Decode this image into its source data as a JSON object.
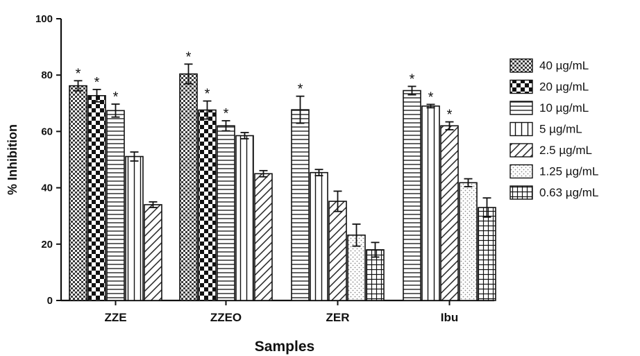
{
  "chart_data": {
    "type": "bar",
    "title": "",
    "xlabel": "Samples",
    "ylabel": "% Inhibition",
    "ylim": [
      0,
      100
    ],
    "yticks": [
      0,
      20,
      40,
      60,
      80,
      100
    ],
    "grid": false,
    "legend_position": "right",
    "categories": [
      "ZZE",
      "ZZEO",
      "ZER",
      "Ibu"
    ],
    "series": [
      {
        "name": "40 µg/mL",
        "pattern": "fine-checker",
        "values": [
          76.2,
          80.4,
          null,
          null
        ],
        "errors": [
          1.8,
          3.5,
          null,
          null
        ],
        "significant": [
          true,
          true,
          null,
          null
        ]
      },
      {
        "name": "20 µg/mL",
        "pattern": "coarse-checker",
        "values": [
          72.7,
          67.6,
          null,
          null
        ],
        "errors": [
          2.2,
          3.2,
          null,
          null
        ],
        "significant": [
          true,
          true,
          null,
          null
        ]
      },
      {
        "name": "10 µg/mL",
        "pattern": "horizontal-lines",
        "values": [
          67.4,
          62.0,
          67.7,
          74.5
        ],
        "errors": [
          2.3,
          1.8,
          4.8,
          1.5
        ],
        "significant": [
          true,
          true,
          true,
          true
        ]
      },
      {
        "name": "5 µg/mL",
        "pattern": "vertical-lines",
        "values": [
          51.1,
          58.5,
          45.4,
          69.0
        ],
        "errors": [
          1.6,
          1.1,
          1.1,
          0.6
        ],
        "significant": [
          false,
          false,
          false,
          true
        ]
      },
      {
        "name": "2.5 µg/mL",
        "pattern": "diagonal-lines",
        "values": [
          34.0,
          45.0,
          35.2,
          62.0
        ],
        "errors": [
          1.0,
          1.1,
          3.6,
          1.4
        ],
        "significant": [
          false,
          false,
          false,
          true
        ]
      },
      {
        "name": "1.25 µg/mL",
        "pattern": "dots",
        "values": [
          null,
          null,
          23.2,
          41.8
        ],
        "errors": [
          null,
          null,
          3.9,
          1.4
        ],
        "significant": [
          false,
          false,
          false,
          false
        ]
      },
      {
        "name": "0.63 µg/mL",
        "pattern": "grid",
        "values": [
          null,
          null,
          18.0,
          33.0
        ],
        "errors": [
          null,
          null,
          2.6,
          3.4
        ],
        "significant": [
          false,
          false,
          false,
          false
        ]
      }
    ],
    "significance_marker": "*"
  },
  "colors": {
    "ink": "#111111",
    "dots": "#9a9a9a",
    "background": "#ffffff"
  }
}
